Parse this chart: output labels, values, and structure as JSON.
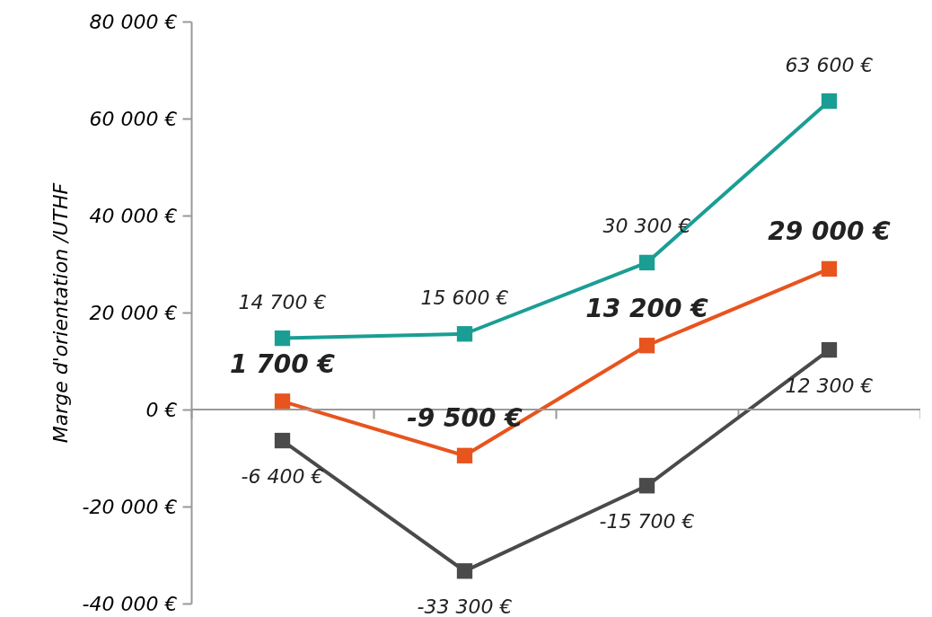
{
  "chart_data": {
    "type": "line",
    "ylabel": "Marge d'orientation /UTHF",
    "categories": [
      null,
      null,
      null,
      null
    ],
    "series": [
      {
        "color": "#1a9e94",
        "values": [
          14700,
          15600,
          30300,
          63600
        ],
        "value_labels": [
          "14 700 €",
          "15 600 €",
          "30 300 €",
          "63 600 €"
        ]
      },
      {
        "color": "#e8541e",
        "values": [
          1700,
          -9500,
          13200,
          29000
        ],
        "value_labels": [
          "1 700 €",
          "-9 500 €",
          "13 200 €",
          "29 000 €"
        ]
      },
      {
        "color": "#4a4a4a",
        "values": [
          -6400,
          -33300,
          -15700,
          12300
        ],
        "value_labels": [
          "-6 400 €",
          "-33 300 €",
          "-15 700 €",
          "12 300 €"
        ]
      }
    ],
    "ylim": [
      -40000,
      80000
    ],
    "yticks": [
      {
        "value": -40000,
        "label": "-40 000 €"
      },
      {
        "value": -20000,
        "label": "-20 000 €"
      },
      {
        "value": 0,
        "label": "0 €"
      },
      {
        "value": 20000,
        "label": "20 000 €"
      },
      {
        "value": 40000,
        "label": "40 000 €"
      },
      {
        "value": 60000,
        "label": "60 000 €"
      },
      {
        "value": 80000,
        "label": "80 000 €"
      }
    ],
    "ref_lines": [
      {
        "axis": "y",
        "value": 0,
        "color": "#999999"
      }
    ],
    "marker": "square",
    "line_style": "solid",
    "grid": false,
    "legend": false
  }
}
